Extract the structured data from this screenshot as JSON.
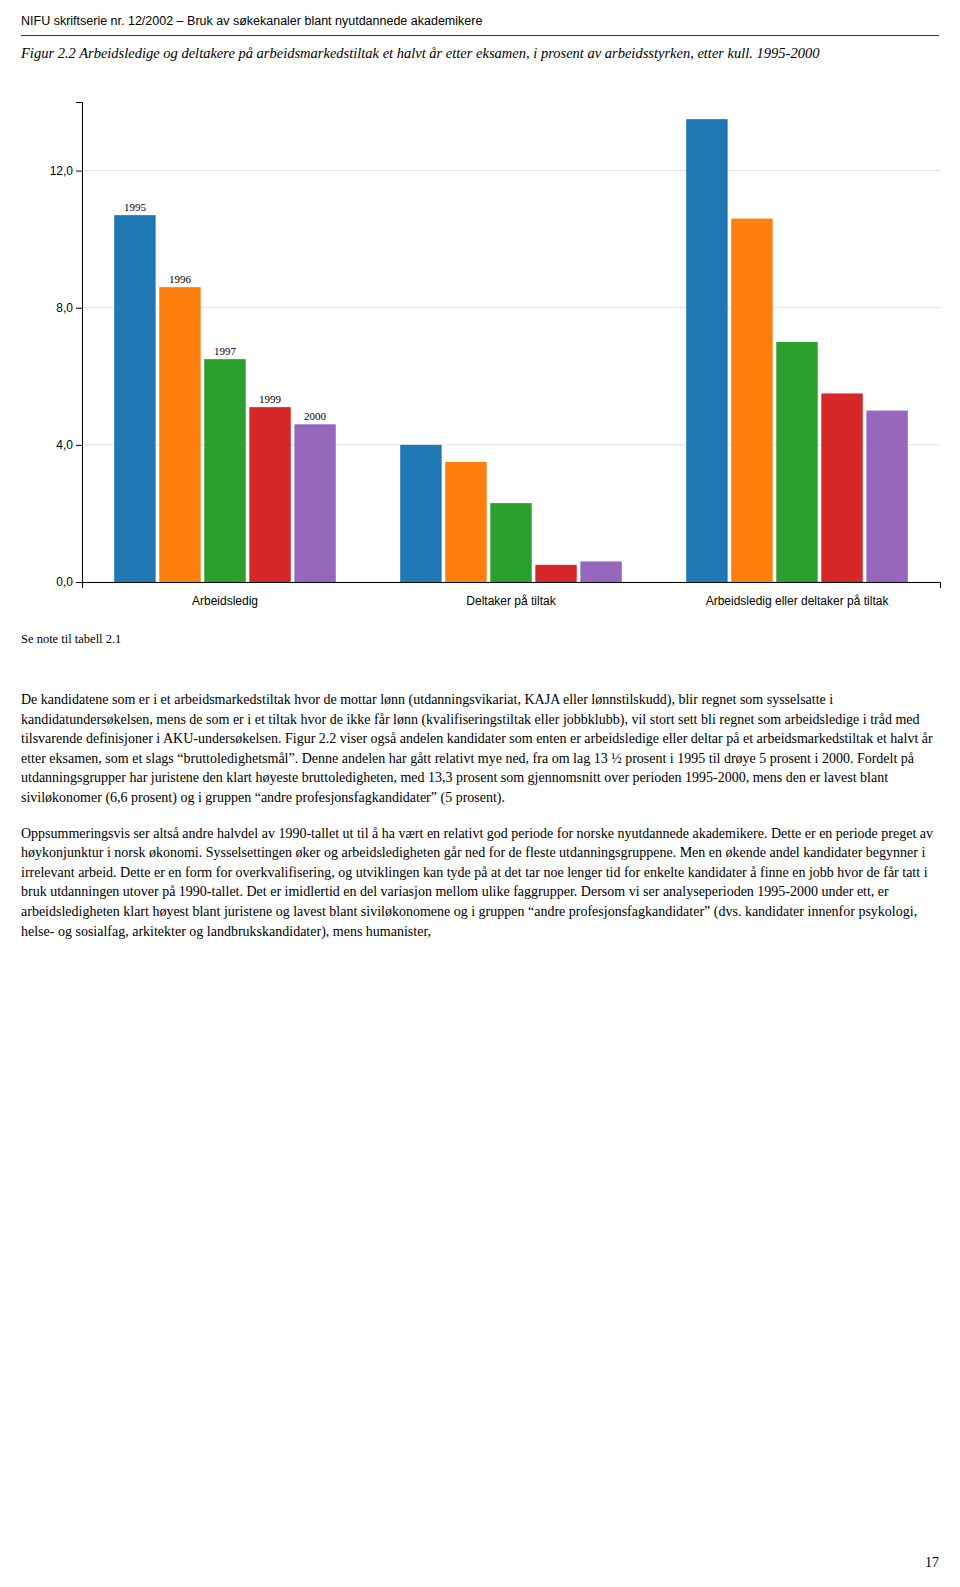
{
  "header": "NIFU skriftserie nr. 12/2002 – Bruk av søkekanaler blant nyutdannede akademikere",
  "chart_data": {
    "type": "bar",
    "title": "Figur 2.2 Arbeidsledige og deltakere på arbeidsmarkedstiltak et halvt år etter eksamen, i prosent av arbeidsstyrken, etter kull. 1995-2000",
    "categories": [
      "Arbeidsledig",
      "Deltaker på tiltak",
      "Arbeidsledig eller deltaker på tiltak"
    ],
    "series": [
      {
        "name": "1995",
        "values": [
          10.7,
          4.0,
          13.5
        ]
      },
      {
        "name": "1996",
        "values": [
          8.6,
          3.5,
          10.6
        ]
      },
      {
        "name": "1997",
        "values": [
          6.5,
          2.3,
          7.0
        ]
      },
      {
        "name": "1999",
        "values": [
          5.1,
          0.5,
          5.5
        ]
      },
      {
        "name": "2000",
        "values": [
          4.6,
          0.6,
          5.0
        ]
      }
    ],
    "ylim": [
      0,
      14
    ],
    "yticks": [
      {
        "value": 0,
        "label": "0,0"
      },
      {
        "value": 4,
        "label": "4,0"
      },
      {
        "value": 8,
        "label": "8,0"
      },
      {
        "value": 12,
        "label": "12,0"
      }
    ],
    "grid": true
  },
  "note": "Se note til tabell 2.1",
  "body_text": [
    "De kandidatene som er i et arbeidsmarkedstiltak hvor de mottar lønn (utdanningsvikariat, KAJA eller lønnstilskudd), blir regnet som sysselsatte i kandidatundersøkelsen, mens de som er i et tiltak hvor de ikke får lønn (kvalifiseringstiltak eller jobbklubb), vil stort sett bli regnet som arbeidsledige i tråd med tilsvarende definisjoner i AKU-undersøkelsen. Figur 2.2 viser også andelen kandidater som enten er arbeidsledige eller deltar på et arbeidsmarkedstiltak et halvt år etter eksamen, som et slags “bruttoledighetsmål”. Denne andelen har gått relativt mye ned, fra om lag 13 ½ prosent i 1995 til drøye 5 prosent i 2000. Fordelt på utdanningsgrupper har juristene den klart høyeste bruttoledigheten, med 13,3 prosent som gjennomsnitt over perioden 1995-2000, mens den er lavest blant siviløkonomer (6,6 prosent) og i gruppen “andre profesjonsfagkandidater” (5 prosent).",
    "Oppsummeringsvis ser altså andre halvdel av 1990-tallet ut til å ha vært en relativt god periode for norske nyutdannede akademikere. Dette er en periode preget av høykonjunktur i norsk økonomi. Sysselsettingen øker og arbeidsledigheten går ned for de fleste utdanningsgruppene. Men en økende andel kandidater begynner i irrelevant arbeid. Dette er en form for overkvalifisering, og utviklingen kan tyde på at det tar noe lenger tid for enkelte kandidater å finne en jobb hvor de får tatt i bruk utdanningen utover på 1990-tallet. Det er imidlertid en del variasjon mellom ulike faggrupper. Dersom vi ser analyseperioden 1995-2000 under ett, er arbeidsledigheten klart høyest blant juristene og lavest blant siviløkonomene og i gruppen “andre profesjonsfagkandidater” (dvs. kandidater innenfor psykologi, helse- og sosialfag, arkitekter og landbrukskandidater), mens humanister,"
  ],
  "page_number": "17"
}
